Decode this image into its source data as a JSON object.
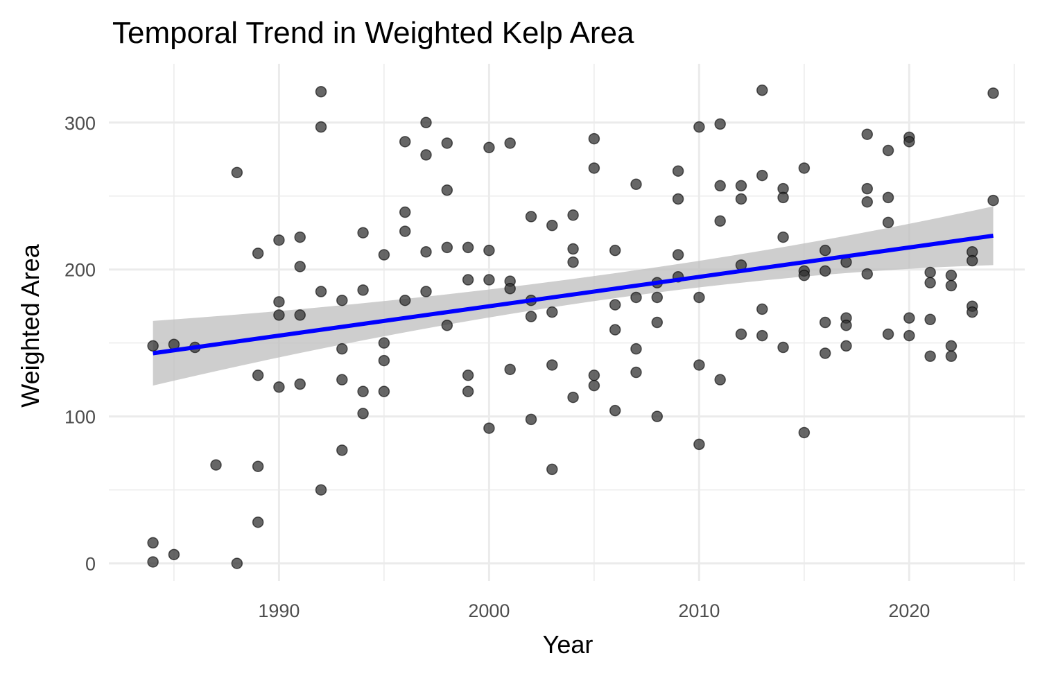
{
  "chart_data": {
    "type": "scatter",
    "title": "Temporal Trend in Weighted Kelp Area",
    "xlabel": "Year",
    "ylabel": "Weighted Area",
    "xlim": [
      1981.9,
      2025.5
    ],
    "ylim": [
      -12,
      340
    ],
    "x_major_ticks": [
      1990,
      2000,
      2010,
      2020
    ],
    "x_minor_ticks": [
      1985,
      1995,
      2005,
      2015,
      2025
    ],
    "y_major_ticks": [
      0,
      100,
      200,
      300
    ],
    "y_minor_ticks": [
      50,
      150,
      250
    ],
    "x_tick_labels": [
      "1990",
      "2000",
      "2010",
      "2020"
    ],
    "y_tick_labels": [
      "0",
      "100",
      "200",
      "300"
    ],
    "grid": true,
    "legend": "none",
    "colors": {
      "points_fill": "#333333",
      "points_stroke": "#000000",
      "trend_line": "#0000ff",
      "confidence_band": "#bebebe",
      "grid": "#ebebeb"
    },
    "trend": {
      "method": "lm",
      "x": [
        1984,
        2024
      ],
      "y": [
        143,
        223
      ],
      "ci_lower": [
        121,
        203
      ],
      "ci_upper": [
        165,
        243
      ],
      "ci_center": [
        2006,
        185
      ]
    },
    "points": {
      "x": [
        1984,
        1984,
        1984,
        1985,
        1985,
        1986,
        1987,
        1988,
        1988,
        1989,
        1989,
        1989,
        1989,
        1990,
        1990,
        1990,
        1990,
        1991,
        1991,
        1991,
        1991,
        1992,
        1992,
        1992,
        1992,
        1993,
        1993,
        1993,
        1993,
        1994,
        1994,
        1994,
        1994,
        1995,
        1995,
        1995,
        1995,
        1996,
        1996,
        1996,
        1996,
        1997,
        1997,
        1997,
        1997,
        1998,
        1998,
        1998,
        1998,
        1999,
        1999,
        1999,
        1999,
        2000,
        2000,
        2000,
        2000,
        2001,
        2001,
        2001,
        2001,
        2002,
        2002,
        2002,
        2002,
        2003,
        2003,
        2003,
        2003,
        2004,
        2004,
        2004,
        2004,
        2005,
        2005,
        2005,
        2005,
        2006,
        2006,
        2006,
        2006,
        2007,
        2007,
        2007,
        2007,
        2008,
        2008,
        2008,
        2008,
        2009,
        2009,
        2009,
        2009,
        2010,
        2010,
        2010,
        2010,
        2011,
        2011,
        2011,
        2011,
        2012,
        2012,
        2012,
        2012,
        2013,
        2013,
        2013,
        2013,
        2014,
        2014,
        2014,
        2014,
        2015,
        2015,
        2015,
        2015,
        2016,
        2016,
        2016,
        2016,
        2017,
        2017,
        2017,
        2017,
        2018,
        2018,
        2018,
        2018,
        2019,
        2019,
        2019,
        2019,
        2020,
        2020,
        2020,
        2020,
        2021,
        2021,
        2021,
        2021,
        2022,
        2022,
        2022,
        2022,
        2023,
        2023,
        2023,
        2023,
        2024,
        2024
      ],
      "y": [
        148,
        14,
        1,
        149,
        6,
        147,
        67,
        266,
        0,
        211,
        128,
        66,
        28,
        220,
        178,
        169,
        120,
        222,
        202,
        169,
        122,
        321,
        297,
        185,
        50,
        179,
        146,
        125,
        77,
        225,
        186,
        117,
        102,
        210,
        150,
        138,
        117,
        287,
        239,
        226,
        179,
        300,
        278,
        212,
        185,
        286,
        254,
        215,
        162,
        215,
        193,
        128,
        117,
        283,
        213,
        193,
        92,
        286,
        192,
        187,
        132,
        236,
        179,
        168,
        98,
        230,
        171,
        135,
        64,
        237,
        214,
        205,
        113,
        289,
        269,
        128,
        121,
        213,
        176,
        159,
        104,
        258,
        181,
        146,
        130,
        191,
        181,
        164,
        100,
        267,
        248,
        210,
        195,
        297,
        181,
        135,
        81,
        299,
        257,
        233,
        125,
        257,
        248,
        203,
        156,
        322,
        264,
        173,
        155,
        255,
        249,
        222,
        147,
        269,
        199,
        196,
        89,
        213,
        199,
        164,
        143,
        205,
        167,
        162,
        148,
        292,
        255,
        246,
        197,
        281,
        249,
        232,
        156,
        290,
        287,
        167,
        155,
        198,
        191,
        166,
        141,
        196,
        189,
        148,
        141,
        212,
        206,
        175,
        171,
        320,
        247
      ]
    }
  }
}
